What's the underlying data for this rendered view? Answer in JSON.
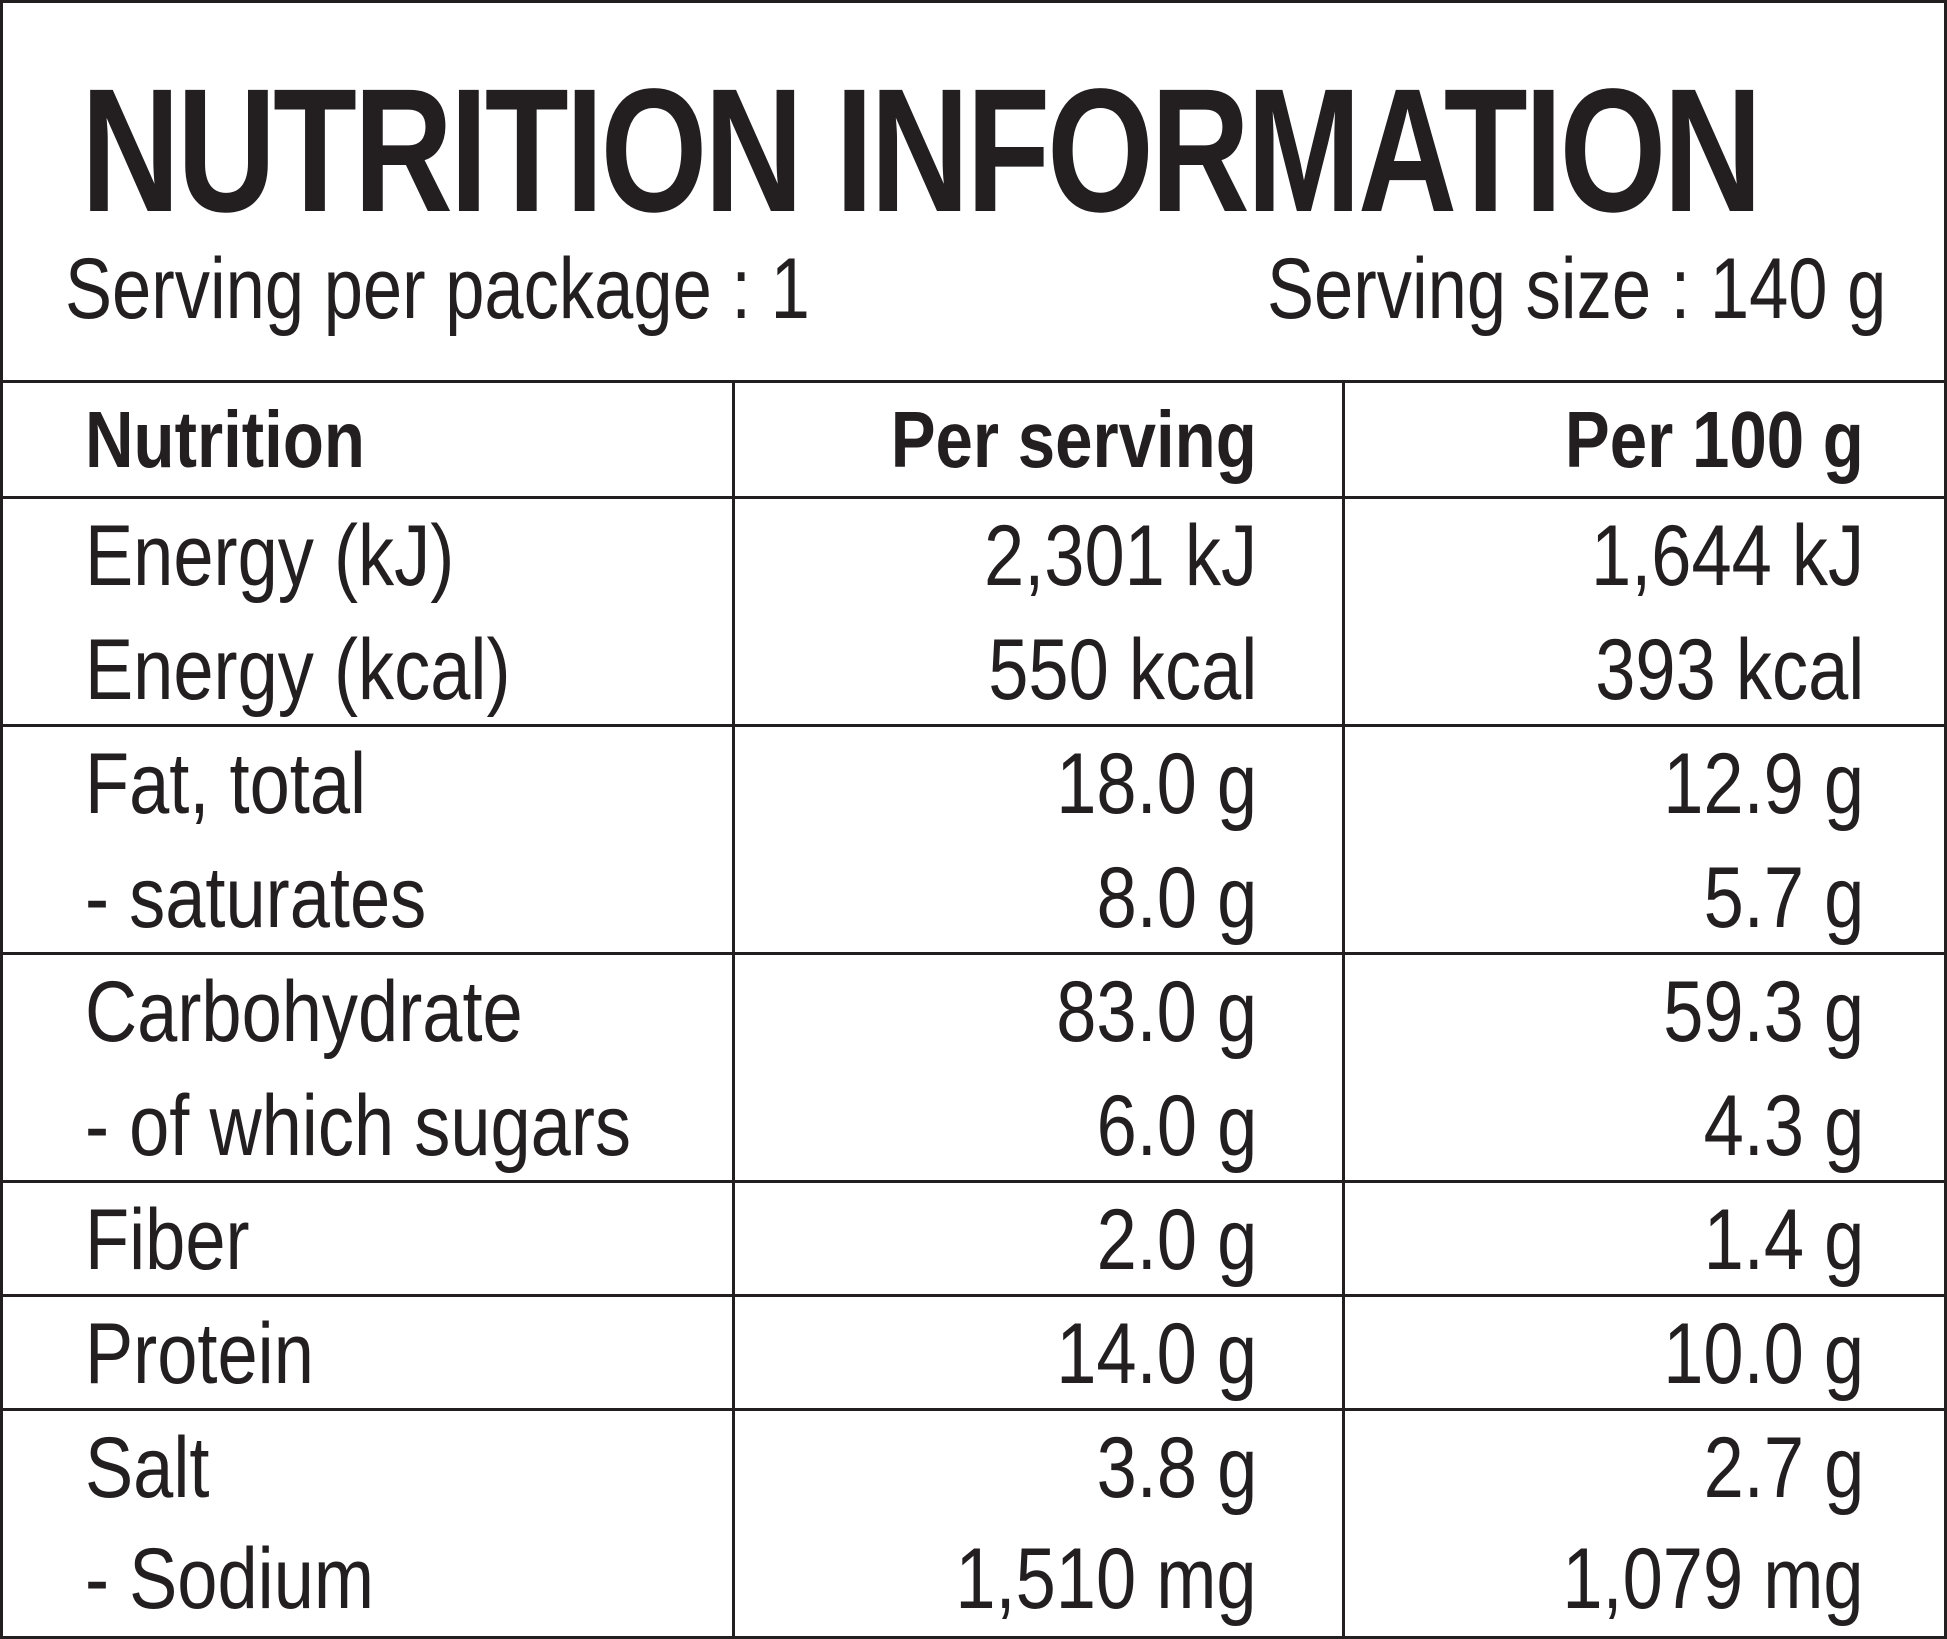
{
  "title": "NUTRITION INFORMATION",
  "serving_per_package": "Serving per package : 1",
  "serving_size": "Serving size : 140 g",
  "table": {
    "headers": [
      "Nutrition",
      "Per serving",
      "Per 100 g"
    ],
    "rows": [
      {
        "name": "Energy (kJ)",
        "per_serving": "2,301 kJ",
        "per_100g": "1,644 kJ"
      },
      {
        "name": "Energy (kcal)",
        "per_serving": "550 kcal",
        "per_100g": "393 kcal"
      },
      {
        "name": "Fat, total",
        "per_serving": "18.0 g",
        "per_100g": "12.9 g"
      },
      {
        "name": "- saturates",
        "per_serving": "8.0 g",
        "per_100g": "5.7 g"
      },
      {
        "name": "Carbohydrate",
        "per_serving": "83.0 g",
        "per_100g": "59.3 g"
      },
      {
        "name": "- of which sugars",
        "per_serving": "6.0 g",
        "per_100g": "4.3 g"
      },
      {
        "name": "Fiber",
        "per_serving": "2.0 g",
        "per_100g": "1.4 g"
      },
      {
        "name": "Protein",
        "per_serving": "14.0 g",
        "per_100g": "10.0 g"
      },
      {
        "name": "Salt",
        "per_serving": "3.8 g",
        "per_100g": "2.7 g"
      },
      {
        "name": "- Sodium",
        "per_serving": "1,510 mg",
        "per_100g": "1,079 mg"
      }
    ]
  }
}
